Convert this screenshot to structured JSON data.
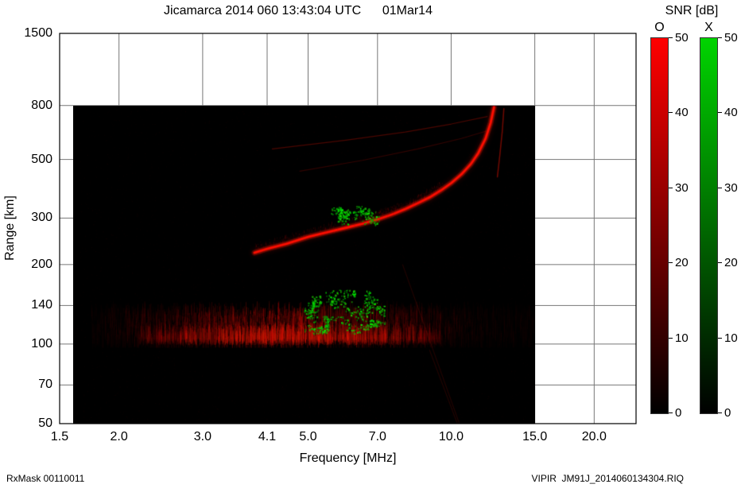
{
  "title": "Jicamarca 2014 060 13:43:04 UTC      01Mar14",
  "footer": {
    "left": "RxMask 00110011",
    "right": "VIPIR  JM91J_2014060134304.RIQ"
  },
  "colorbar": {
    "title": "SNR [dB]",
    "min": 0,
    "max": 50,
    "ticks": [
      0,
      10,
      20,
      30,
      40,
      50
    ],
    "bars": [
      {
        "label": "O",
        "top_color": "#ff0000",
        "bottom_color": "#000000"
      },
      {
        "label": "X",
        "top_color": "#00d400",
        "bottom_color": "#000000"
      }
    ]
  },
  "chart_data": {
    "type": "heatmap",
    "title": "Jicamarca 2014 060 13:43:04 UTC      01Mar14",
    "xlabel": "Frequency [MHz]",
    "ylabel": "Range [km]",
    "x_scale": "log",
    "y_scale": "log",
    "xlim": [
      1.5,
      24.5
    ],
    "ylim": [
      50,
      1500
    ],
    "grid": true,
    "x_ticks": [
      {
        "value": 1.5,
        "label": "1.5"
      },
      {
        "value": 2.0,
        "label": "2.0"
      },
      {
        "value": 3.0,
        "label": "3.0"
      },
      {
        "value": 4.1,
        "label": "4.1"
      },
      {
        "value": 5.0,
        "label": "5.0"
      },
      {
        "value": 7.0,
        "label": "7.0"
      },
      {
        "value": 10.0,
        "label": "10.0"
      },
      {
        "value": 15.0,
        "label": "15.0"
      },
      {
        "value": 20.0,
        "label": "20.0"
      }
    ],
    "y_ticks": [
      {
        "value": 50,
        "label": "50"
      },
      {
        "value": 70,
        "label": "70"
      },
      {
        "value": 100,
        "label": "100"
      },
      {
        "value": 140,
        "label": "140"
      },
      {
        "value": 200,
        "label": "200"
      },
      {
        "value": 300,
        "label": "300"
      },
      {
        "value": 500,
        "label": "500"
      },
      {
        "value": 800,
        "label": "800"
      },
      {
        "value": 1500,
        "label": "1500"
      }
    ],
    "background": "#000000",
    "data_extent": {
      "freq_mhz": [
        1.6,
        15.0
      ],
      "range_km": [
        50,
        800
      ]
    },
    "features": {
      "o_trace": {
        "name": "F-layer O-mode echo trace",
        "color": "#ff0f00",
        "points_mhz_km": [
          [
            3.85,
            222
          ],
          [
            4.1,
            230
          ],
          [
            4.5,
            240
          ],
          [
            5.0,
            255
          ],
          [
            5.5,
            266
          ],
          [
            6.0,
            276
          ],
          [
            6.5,
            286
          ],
          [
            7.0,
            297
          ],
          [
            7.5,
            310
          ],
          [
            8.0,
            325
          ],
          [
            8.5,
            342
          ],
          [
            9.0,
            360
          ],
          [
            9.5,
            382
          ],
          [
            10.0,
            408
          ],
          [
            10.5,
            440
          ],
          [
            11.0,
            482
          ],
          [
            11.4,
            530
          ],
          [
            11.8,
            600
          ],
          [
            12.1,
            690
          ],
          [
            12.3,
            790
          ]
        ]
      },
      "x_trace": {
        "name": "X-mode asymptote trace",
        "color": "#dd1100",
        "points_mhz_km": [
          [
            12.5,
            430
          ],
          [
            12.65,
            520
          ],
          [
            12.8,
            640
          ],
          [
            12.9,
            780
          ]
        ]
      },
      "multiple_traces": [
        {
          "points_mhz_km": [
            [
              4.2,
              549
            ],
            [
              6.0,
              592
            ],
            [
              8.0,
              636
            ],
            [
              10.0,
              682
            ],
            [
              11.9,
              728
            ]
          ],
          "alpha": 0.33
        },
        {
          "points_mhz_km": [
            [
              4.8,
              452
            ],
            [
              6.5,
              497
            ],
            [
              8.5,
              549
            ],
            [
              10.5,
              601
            ],
            [
              11.8,
              640
            ]
          ],
          "alpha": 0.22
        }
      ],
      "e_band": {
        "name": "E-region diffuse echo band",
        "freq_mhz": [
          1.75,
          15.0
        ],
        "range_km": [
          98,
          140
        ],
        "core_freq_mhz": [
          2.7,
          7.7
        ],
        "color": "#cc1100"
      },
      "x_mode_clusters": [
        {
          "freq_mhz": [
            4.95,
            7.15
          ],
          "range_km": [
            112,
            158
          ],
          "clumps": 55
        },
        {
          "freq_mhz": [
            5.6,
            7.0
          ],
          "range_km": [
            292,
            328
          ],
          "clumps": 20
        }
      ],
      "interference_streaks": [
        {
          "points_mhz_km": [
            [
              7.9,
              200
            ],
            [
              10.4,
              50
            ]
          ],
          "alpha": 0.13
        },
        {
          "points_mhz_km": [
            [
              9.0,
              95
            ],
            [
              10.3,
              50
            ]
          ],
          "alpha": 0.13
        }
      ]
    }
  }
}
